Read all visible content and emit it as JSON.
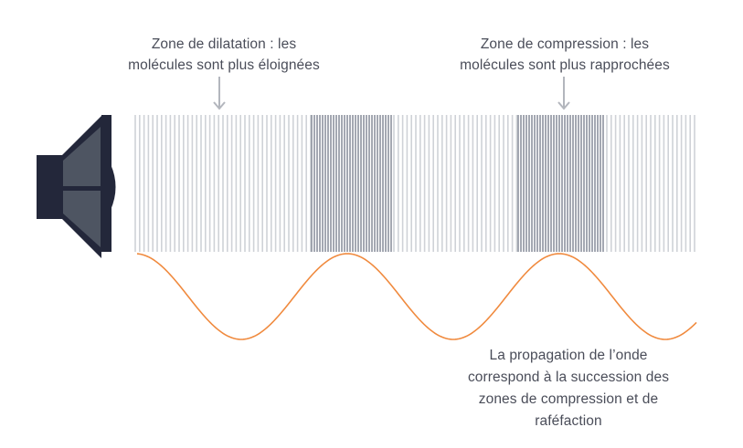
{
  "labels": {
    "dilatation": [
      "Zone de dilatation : les",
      "molécules sont plus éloignées"
    ],
    "compression": [
      "Zone de compression : les",
      "molécules sont plus rapprochées"
    ],
    "propagation": [
      "La propagation de l’onde",
      "correspond à la succession des",
      "zones de compression et de",
      "raféfaction"
    ]
  },
  "colors": {
    "text": "#4a4d59",
    "arrow": "#b3b6bd",
    "sparse_line": "#cfd2d7",
    "dense_line": "#8e939e",
    "wave": "#f08a3e",
    "speaker_dark": "#23273a",
    "speaker_cone": "#4e5562"
  },
  "icons": {
    "speaker": "loudspeaker-icon"
  }
}
